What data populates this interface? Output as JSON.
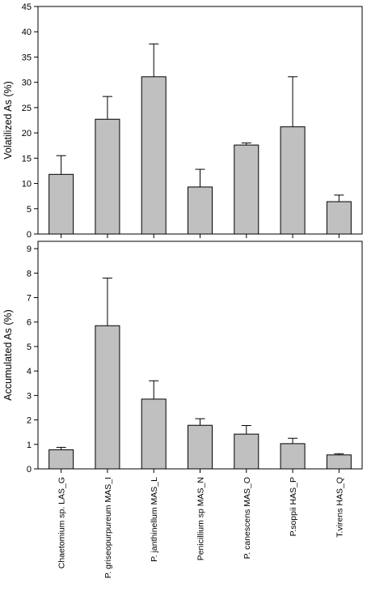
{
  "colors": {
    "bar_fill": "#c0c0c0",
    "bar_stroke": "#000000",
    "axis": "#000000"
  },
  "categories": [
    "Chaetomium sp. LAS_G",
    "P. griseopurpureum MAS_I",
    "P. janthinellum MAS_L",
    "Penicillium sp MAS_N",
    "P. canescens MAS_O",
    "P.soppii HAS_P",
    "T.virens HAS_Q"
  ],
  "chart_data": [
    {
      "type": "bar",
      "ylabel": "Volatilized As (%)",
      "ylim": [
        0,
        45
      ],
      "yticks": [
        0,
        5,
        10,
        15,
        20,
        25,
        30,
        35,
        40,
        45
      ],
      "values": [
        11.8,
        22.7,
        31.1,
        9.3,
        17.6,
        21.2,
        6.4
      ],
      "errors": [
        3.7,
        4.5,
        6.5,
        3.5,
        0.4,
        9.9,
        1.3
      ],
      "grid": false
    },
    {
      "type": "bar",
      "ylabel": "Accumulated As (%)",
      "ylim": [
        0,
        9.3
      ],
      "yticks": [
        0,
        1,
        2,
        3,
        4,
        5,
        6,
        7,
        8,
        9
      ],
      "values": [
        0.78,
        5.85,
        2.85,
        1.78,
        1.42,
        1.03,
        0.57
      ],
      "errors": [
        0.1,
        1.95,
        0.75,
        0.27,
        0.35,
        0.22,
        0.05
      ],
      "grid": false
    }
  ]
}
